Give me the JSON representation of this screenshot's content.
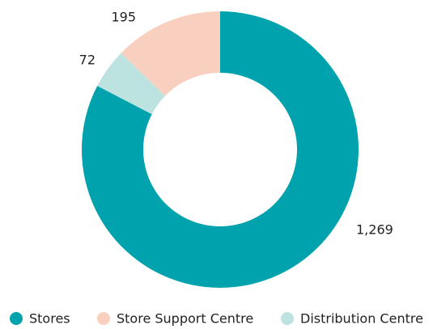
{
  "chart_data": {
    "type": "donut",
    "categories": [
      "Stores",
      "Store Support Centre",
      "Distribution Centre"
    ],
    "values": [
      1269,
      195,
      72
    ],
    "value_labels": [
      "1,269",
      "195",
      "72"
    ],
    "colors": [
      "#00a3ad",
      "#f9cfbf",
      "#bde3e0"
    ],
    "legend": "bottom"
  }
}
